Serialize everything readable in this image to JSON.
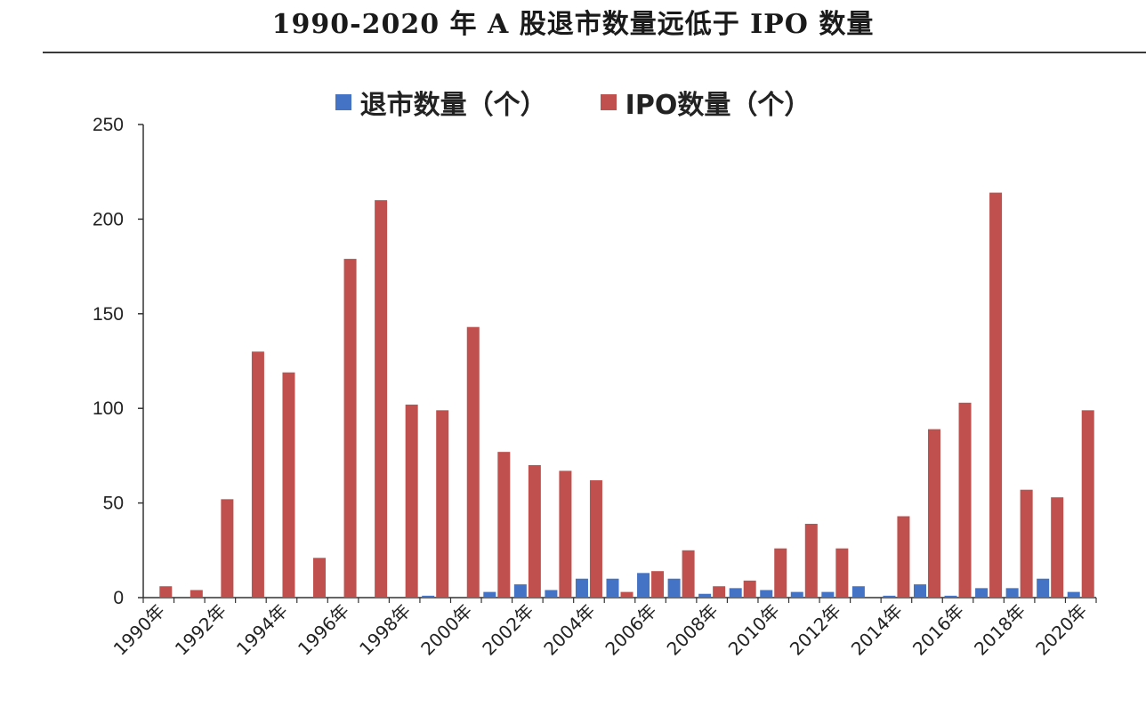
{
  "title": "1990-2020 年 A 股退市数量远低于 IPO 数量",
  "chart_data": {
    "type": "bar",
    "title": "1990-2020 年 A 股退市数量远低于 IPO 数量",
    "xlabel": "",
    "ylabel": "",
    "ylim": [
      0,
      250
    ],
    "yticks": [
      "0",
      "50",
      "100",
      "150",
      "200",
      "250"
    ],
    "grid": false,
    "legend_position": "top-center",
    "categories": [
      "1990",
      "1991",
      "1992",
      "1993",
      "1994",
      "1995",
      "1996",
      "1997",
      "1998",
      "1999",
      "2000",
      "2001",
      "2002",
      "2003",
      "2004",
      "2005",
      "2006",
      "2007",
      "2008",
      "2009",
      "2010",
      "2011",
      "2012",
      "2013",
      "2014",
      "2015",
      "2016",
      "2017",
      "2018",
      "2019",
      "2020"
    ],
    "x_tick_labels": [
      "1990年",
      "1992年",
      "1994年",
      "1996年",
      "1998年",
      "2000年",
      "2002年",
      "2004年",
      "2006年",
      "2008年",
      "2010年",
      "2012年",
      "2014年",
      "2016年",
      "2018年",
      "2020年"
    ],
    "series": [
      {
        "name": "退市数量（个）",
        "color": "#4472C4",
        "values": [
          0,
          0,
          0,
          0,
          0,
          0,
          0,
          0,
          0,
          1,
          0,
          3,
          7,
          4,
          10,
          10,
          13,
          10,
          2,
          5,
          4,
          3,
          3,
          6,
          1,
          7,
          1,
          5,
          5,
          10,
          3
        ]
      },
      {
        "name": "IPO数量（个）",
        "color": "#C0504D",
        "values": [
          6,
          4,
          52,
          130,
          119,
          21,
          179,
          210,
          102,
          99,
          143,
          77,
          70,
          67,
          62,
          3,
          14,
          25,
          6,
          9,
          26,
          39,
          26,
          0,
          43,
          89,
          103,
          214,
          57,
          53,
          99
        ]
      }
    ]
  }
}
